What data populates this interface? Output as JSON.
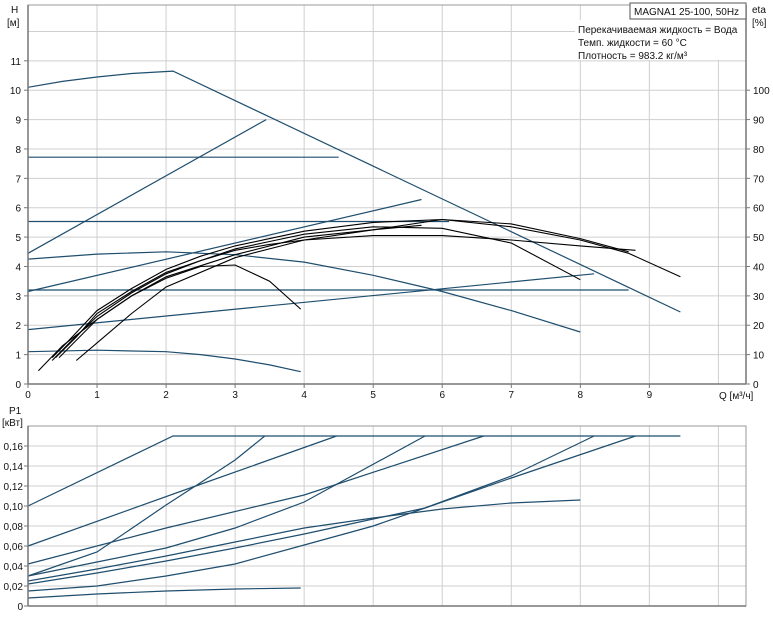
{
  "chart_data": [
    {
      "type": "line",
      "title": "MAGNA1 25-100, 50Hz",
      "annotations": [
        "Перекачиваемая жидкость = Вода",
        "Темп. жидкости = 60 °C",
        "Плотность = 983.2 кг/м³"
      ],
      "xlabel": "Q [м³/ч]",
      "ylabel_left": [
        "H",
        "[м]"
      ],
      "ylabel_right": [
        "eta",
        "[%]"
      ],
      "xlim": [
        0,
        10.4
      ],
      "ylim": [
        0,
        12.9
      ],
      "y2lim": [
        0,
        129
      ],
      "x_ticks": [
        "0",
        "1",
        "2",
        "3",
        "4",
        "5",
        "6",
        "7",
        "8",
        "9"
      ],
      "y_ticks": [
        "0",
        "1",
        "2",
        "3",
        "4",
        "5",
        "6",
        "7",
        "8",
        "9",
        "10",
        "11"
      ],
      "y2_ticks": [
        "0",
        "10",
        "20",
        "30",
        "40",
        "50",
        "60",
        "70",
        "80",
        "90",
        "100"
      ],
      "grid": true,
      "colors": {
        "head": "#1f4e6e",
        "efficiency": "#000000"
      },
      "head_series": [
        {
          "points": [
            [
              0,
              10.1
            ],
            [
              0.5,
              10.3
            ],
            [
              1,
              10.45
            ],
            [
              1.5,
              10.57
            ],
            [
              2.1,
              10.65
            ],
            [
              9.45,
              2.45
            ]
          ]
        },
        {
          "points": [
            [
              0,
              4.45
            ],
            [
              3.45,
              9.0
            ]
          ]
        },
        {
          "points": [
            [
              0,
              7.72
            ],
            [
              4.5,
              7.72
            ]
          ]
        },
        {
          "points": [
            [
              0,
              3.15
            ],
            [
              5.7,
              6.28
            ]
          ]
        },
        {
          "points": [
            [
              0,
              5.53
            ],
            [
              6.1,
              5.53
            ]
          ]
        },
        {
          "points": [
            [
              0,
              1.85
            ],
            [
              8.2,
              3.75
            ]
          ]
        },
        {
          "points": [
            [
              0,
              3.2
            ],
            [
              8.7,
              3.2
            ]
          ]
        },
        {
          "points": [
            [
              0,
              4.25
            ],
            [
              1,
              4.42
            ],
            [
              2,
              4.5
            ],
            [
              3,
              4.4
            ],
            [
              4,
              4.15
            ],
            [
              5,
              3.7
            ],
            [
              6,
              3.15
            ],
            [
              7,
              2.5
            ],
            [
              8,
              1.77
            ]
          ]
        },
        {
          "points": [
            [
              0,
              1.1
            ],
            [
              1,
              1.15
            ],
            [
              2,
              1.1
            ],
            [
              2.5,
              1.0
            ],
            [
              3,
              0.85
            ],
            [
              3.5,
              0.65
            ],
            [
              3.95,
              0.42
            ]
          ]
        }
      ],
      "efficiency_series": [
        {
          "points": [
            [
              0.35,
              9
            ],
            [
              0.6,
              15
            ],
            [
              1,
              25
            ],
            [
              1.5,
              32.5
            ],
            [
              2,
              39
            ],
            [
              2.5,
              43.5
            ],
            [
              3,
              47
            ],
            [
              3.5,
              49.5
            ],
            [
              4,
              52
            ],
            [
              5,
              55
            ],
            [
              6,
              56
            ],
            [
              7,
              53.5
            ],
            [
              8,
              49
            ],
            [
              8.7,
              44.5
            ],
            [
              9.45,
              36.5
            ]
          ]
        },
        {
          "points": [
            [
              0.35,
              8
            ],
            [
              0.6,
              14
            ],
            [
              1,
              23
            ],
            [
              1.5,
              31
            ],
            [
              2,
              37.5
            ],
            [
              2.5,
              42
            ],
            [
              3,
              46
            ],
            [
              3.5,
              48.5
            ],
            [
              4,
              51
            ],
            [
              5,
              53.5
            ],
            [
              6,
              53
            ],
            [
              7,
              48
            ],
            [
              8,
              35.5
            ]
          ]
        },
        {
          "points": [
            [
              0.4,
              9
            ],
            [
              0.7,
              16
            ],
            [
              1,
              24
            ],
            [
              1.5,
              31.5
            ],
            [
              2,
              38
            ],
            [
              2.5,
              42
            ],
            [
              3,
              45.5
            ],
            [
              3.5,
              47.5
            ],
            [
              4,
              49
            ],
            [
              5,
              50.5
            ],
            [
              6,
              50.5
            ],
            [
              7,
              49
            ],
            [
              8,
              47
            ],
            [
              8.8,
              45.5
            ]
          ]
        },
        {
          "points": [
            [
              0.15,
              4.5
            ],
            [
              0.5,
              13
            ],
            [
              1,
              22
            ],
            [
              1.5,
              30
            ],
            [
              2,
              36
            ],
            [
              2.5,
              40
            ],
            [
              3,
              40.5
            ],
            [
              3.5,
              35
            ],
            [
              3.95,
              25.5
            ]
          ]
        },
        {
          "points": [
            [
              0.7,
              8
            ],
            [
              1,
              14
            ],
            [
              1.5,
              24
            ],
            [
              2,
              33
            ],
            [
              3,
              43
            ],
            [
              4,
              49
            ],
            [
              5,
              52.5
            ],
            [
              6,
              56
            ],
            [
              7,
              54.5
            ],
            [
              8,
              49.5
            ],
            [
              8.7,
              45
            ]
          ]
        },
        {
          "points": [
            [
              0.45,
              9
            ],
            [
              1,
              22
            ],
            [
              1.5,
              30
            ],
            [
              2,
              36.5
            ],
            [
              3,
              44
            ],
            [
              4,
              50
            ],
            [
              5,
              52.5
            ],
            [
              5.7,
              54
            ]
          ]
        }
      ]
    },
    {
      "type": "line",
      "xlabel": "",
      "ylabel": [
        "P1",
        "[кВт]"
      ],
      "xlim": [
        0,
        10.4
      ],
      "ylim": [
        0,
        0.18
      ],
      "y_ticks": [
        "0",
        "0,02",
        "0,04",
        "0,06",
        "0,08",
        "0,10",
        "0,12",
        "0,14",
        "0,16"
      ],
      "grid": true,
      "colors": {
        "power": "#1f4e6e"
      },
      "power_series": [
        {
          "points": [
            [
              0,
              0.1
            ],
            [
              2.1,
              0.17
            ],
            [
              9.45,
              0.17
            ]
          ]
        },
        {
          "points": [
            [
              0,
              0.06
            ],
            [
              2.47,
              0.121
            ],
            [
              4.47,
              0.17
            ]
          ]
        },
        {
          "points": [
            [
              0,
              0.03
            ],
            [
              1,
              0.054
            ],
            [
              2,
              0.101
            ],
            [
              2.47,
              0.122
            ],
            [
              3,
              0.146
            ],
            [
              3.43,
              0.17
            ]
          ]
        },
        {
          "points": [
            [
              0,
              0.03
            ],
            [
              1,
              0.044
            ],
            [
              2,
              0.058
            ],
            [
              3,
              0.078
            ],
            [
              4,
              0.104
            ],
            [
              4.53,
              0.124
            ],
            [
              5.75,
              0.17
            ]
          ]
        },
        {
          "points": [
            [
              0,
              0.042
            ],
            [
              2,
              0.078
            ],
            [
              4,
              0.111
            ],
            [
              6.6,
              0.17
            ]
          ]
        },
        {
          "points": [
            [
              0,
              0.022
            ],
            [
              1,
              0.033
            ],
            [
              2,
              0.045
            ],
            [
              3,
              0.058
            ],
            [
              4,
              0.072
            ],
            [
              5,
              0.087
            ],
            [
              5.75,
              0.098
            ],
            [
              7,
              0.13
            ],
            [
              8.2,
              0.17
            ]
          ]
        },
        {
          "points": [
            [
              0,
              0.015
            ],
            [
              1,
              0.02
            ],
            [
              2,
              0.03
            ],
            [
              3,
              0.042
            ],
            [
              4,
              0.061
            ],
            [
              5,
              0.08
            ],
            [
              5.75,
              0.098
            ],
            [
              7,
              0.128
            ],
            [
              8.8,
              0.17
            ]
          ]
        },
        {
          "points": [
            [
              0,
              0.025
            ],
            [
              1,
              0.037
            ],
            [
              2,
              0.05
            ],
            [
              3,
              0.064
            ],
            [
              4,
              0.078
            ],
            [
              5,
              0.088
            ],
            [
              6,
              0.097
            ],
            [
              7,
              0.103
            ],
            [
              8,
              0.106
            ]
          ]
        },
        {
          "points": [
            [
              0,
              0.008
            ],
            [
              1,
              0.012
            ],
            [
              2,
              0.015
            ],
            [
              3,
              0.017
            ],
            [
              3.95,
              0.018
            ]
          ]
        }
      ]
    }
  ]
}
